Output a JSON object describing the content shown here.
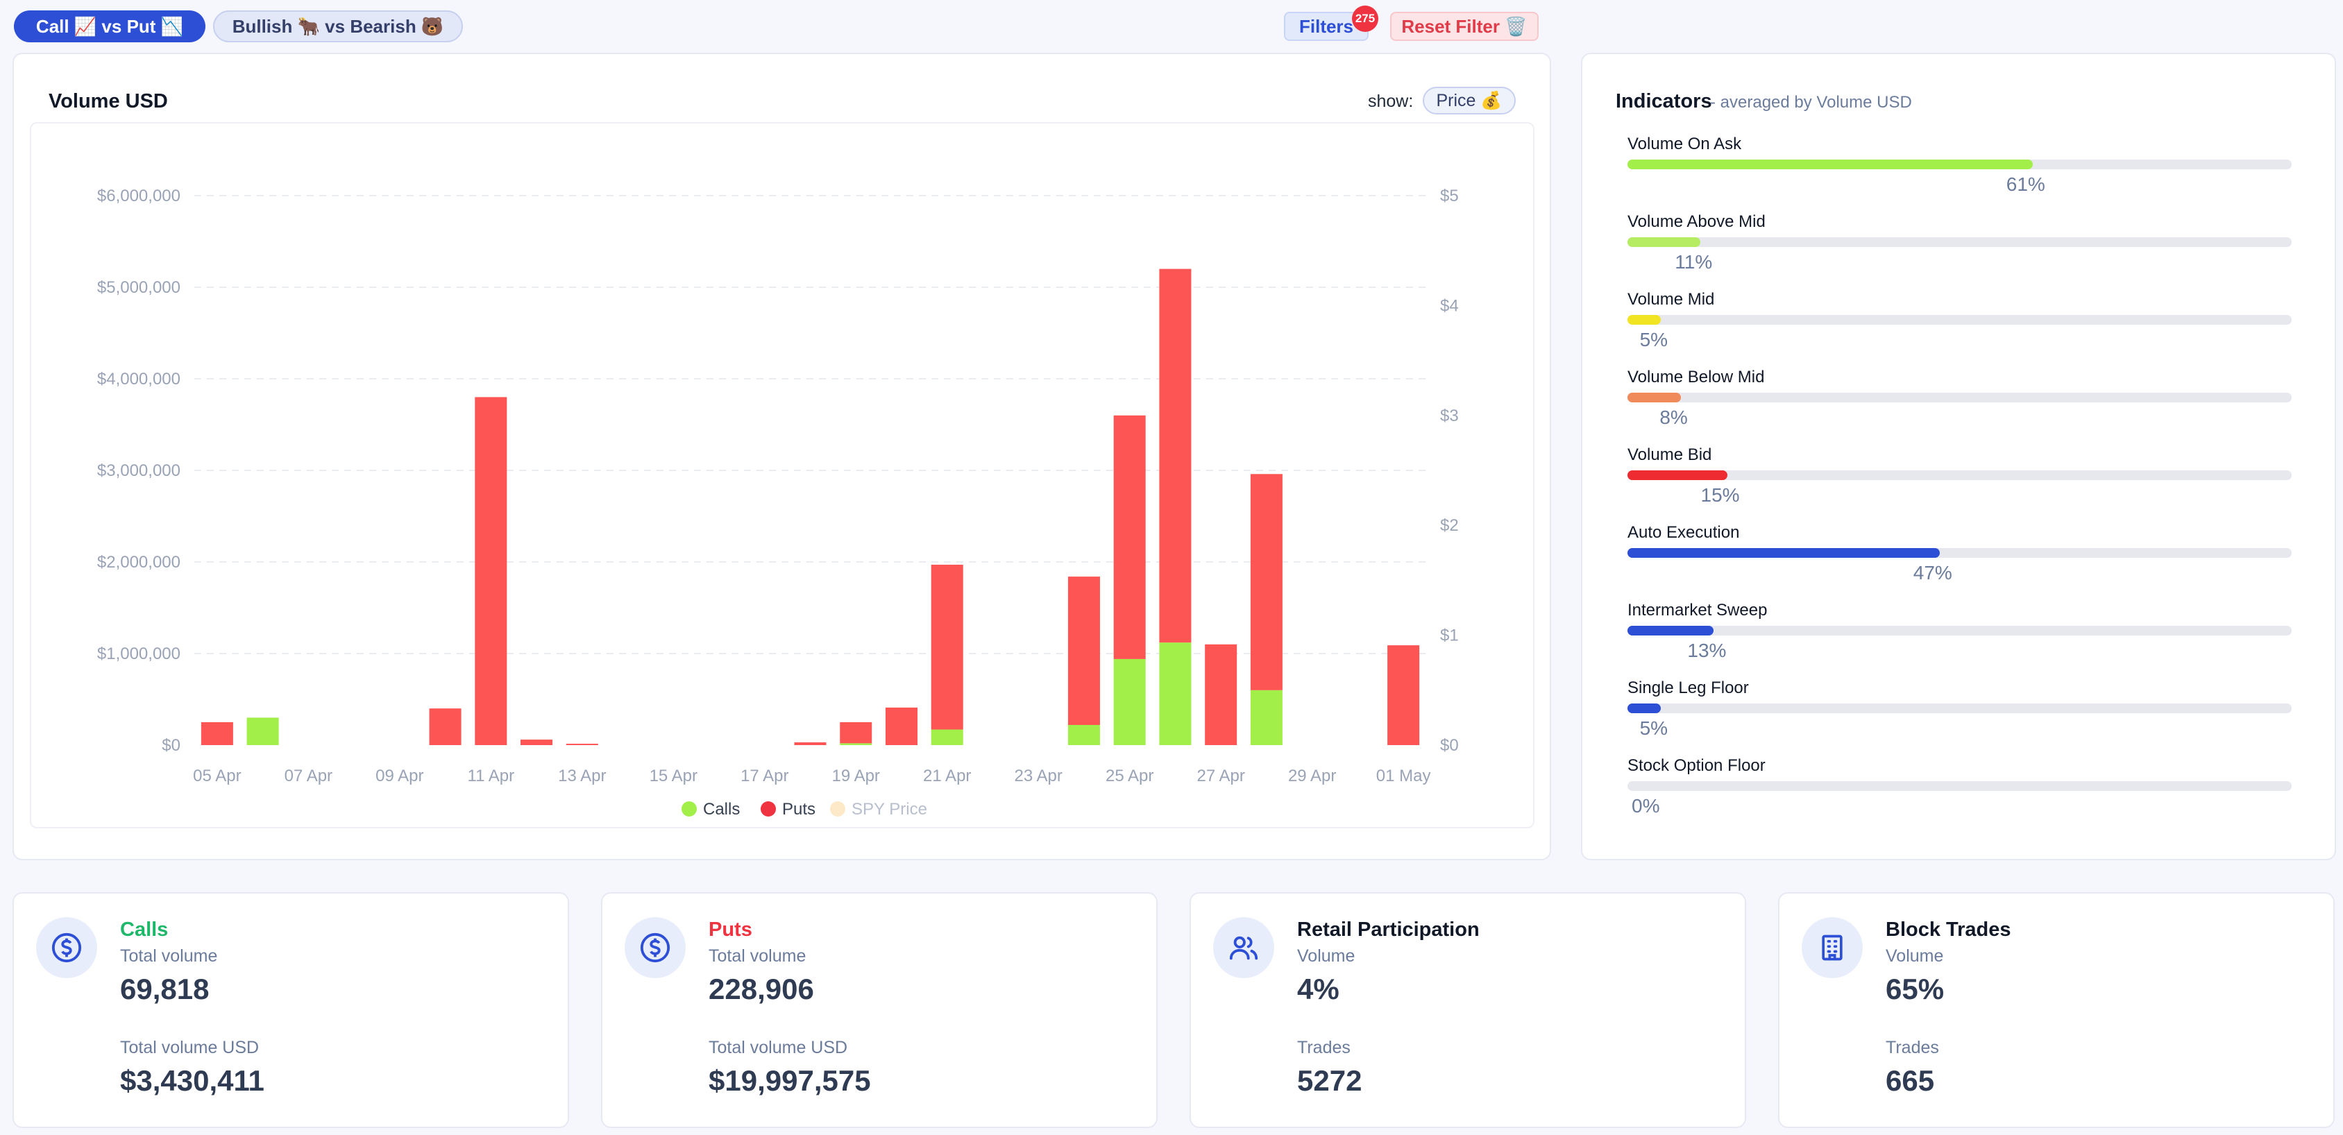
{
  "toolbar": {
    "call_vs_put": "Call 📈 vs Put 📉",
    "bullish_vs_bearish": "Bullish 🐂 vs Bearish 🐻",
    "filters_label": "Filters",
    "filters_count": "275",
    "reset_label": "Reset Filter 🗑️"
  },
  "chart_card": {
    "title": "Volume USD",
    "show_label": "show:",
    "show_value": "Price 💰"
  },
  "chart_data": {
    "type": "bar",
    "stacked": true,
    "title": "Volume USD",
    "x": [
      "05 Apr",
      "06 Apr",
      "07 Apr",
      "08 Apr",
      "09 Apr",
      "10 Apr",
      "11 Apr",
      "12 Apr",
      "13 Apr",
      "14 Apr",
      "15 Apr",
      "16 Apr",
      "17 Apr",
      "18 Apr",
      "19 Apr",
      "20 Apr",
      "21 Apr",
      "22 Apr",
      "23 Apr",
      "24 Apr",
      "25 Apr",
      "26 Apr",
      "27 Apr",
      "28 Apr",
      "29 Apr",
      "30 Apr",
      "01 May"
    ],
    "x_tick_labels": [
      "05 Apr",
      "07 Apr",
      "09 Apr",
      "11 Apr",
      "13 Apr",
      "15 Apr",
      "17 Apr",
      "19 Apr",
      "21 Apr",
      "23 Apr",
      "25 Apr",
      "27 Apr",
      "29 Apr",
      "01 May"
    ],
    "series": [
      {
        "name": "Calls",
        "color": "#a3ef4a",
        "values": [
          0,
          300000,
          0,
          0,
          0,
          0,
          0,
          0,
          0,
          0,
          0,
          0,
          0,
          0,
          20000,
          0,
          170000,
          0,
          0,
          220000,
          940000,
          1120000,
          0,
          600000,
          0,
          0,
          0
        ]
      },
      {
        "name": "Puts",
        "color": "#fd5553",
        "values": [
          250000,
          0,
          0,
          0,
          0,
          400000,
          3800000,
          60000,
          15000,
          0,
          0,
          0,
          0,
          30000,
          230000,
          410000,
          1800000,
          0,
          0,
          1620000,
          2660000,
          4080000,
          1100000,
          2360000,
          0,
          0,
          1090000
        ]
      }
    ],
    "y_left": {
      "min": 0,
      "max": 6000000,
      "ticks": [
        "$0",
        "$1,000,000",
        "$2,000,000",
        "$3,000,000",
        "$4,000,000",
        "$5,000,000",
        "$6,000,000"
      ]
    },
    "y_right": {
      "ticks": [
        "$0",
        "$1",
        "$2",
        "$3",
        "$4",
        "$5"
      ]
    },
    "legend": [
      {
        "label": "Calls",
        "color": "#a3ef4a"
      },
      {
        "label": "Puts",
        "color": "#ef3340"
      },
      {
        "label": "SPY Price",
        "color": "#fde8c8",
        "muted": true
      }
    ],
    "legend_position": "bottom",
    "grid": true
  },
  "indicators": {
    "title": "Indicators",
    "subtitle": "- averaged by Volume USD",
    "items": [
      {
        "label": "Volume On Ask",
        "value": 61,
        "pct": "61%",
        "color": "#a3ef4a"
      },
      {
        "label": "Volume Above Mid",
        "value": 11,
        "pct": "11%",
        "color": "#b6ec62"
      },
      {
        "label": "Volume Mid",
        "value": 5,
        "pct": "5%",
        "color": "#f1e422"
      },
      {
        "label": "Volume Below Mid",
        "value": 8,
        "pct": "8%",
        "color": "#f08a5a"
      },
      {
        "label": "Volume Bid",
        "value": 15,
        "pct": "15%",
        "color": "#ee2b30"
      },
      {
        "label": "Auto Execution",
        "value": 47,
        "pct": "47%",
        "color": "#2d4fd6"
      },
      {
        "label": "Intermarket Sweep",
        "value": 13,
        "pct": "13%",
        "color": "#2d4fd6"
      },
      {
        "label": "Single Leg Floor",
        "value": 5,
        "pct": "5%",
        "color": "#2d4fd6"
      },
      {
        "label": "Stock Option Floor",
        "value": 0,
        "pct": "0%",
        "color": "#2d4fd6"
      }
    ]
  },
  "stats": [
    {
      "title": "Calls",
      "title_color": "#1fb86b",
      "icon": "dollar-icon",
      "label1": "Total volume",
      "value1": "69,818",
      "label2": "Total volume USD",
      "value2": "$3,430,411"
    },
    {
      "title": "Puts",
      "title_color": "#ef3340",
      "icon": "dollar-icon",
      "label1": "Total volume",
      "value1": "228,906",
      "label2": "Total volume USD",
      "value2": "$19,997,575"
    },
    {
      "title": "Retail Participation",
      "title_color": "#111827",
      "icon": "users-icon",
      "label1": "Volume",
      "value1": "4%",
      "label2": "Trades",
      "value2": "5272"
    },
    {
      "title": "Block Trades",
      "title_color": "#111827",
      "icon": "building-icon",
      "label1": "Volume",
      "value1": "65%",
      "label2": "Trades",
      "value2": "665"
    }
  ]
}
